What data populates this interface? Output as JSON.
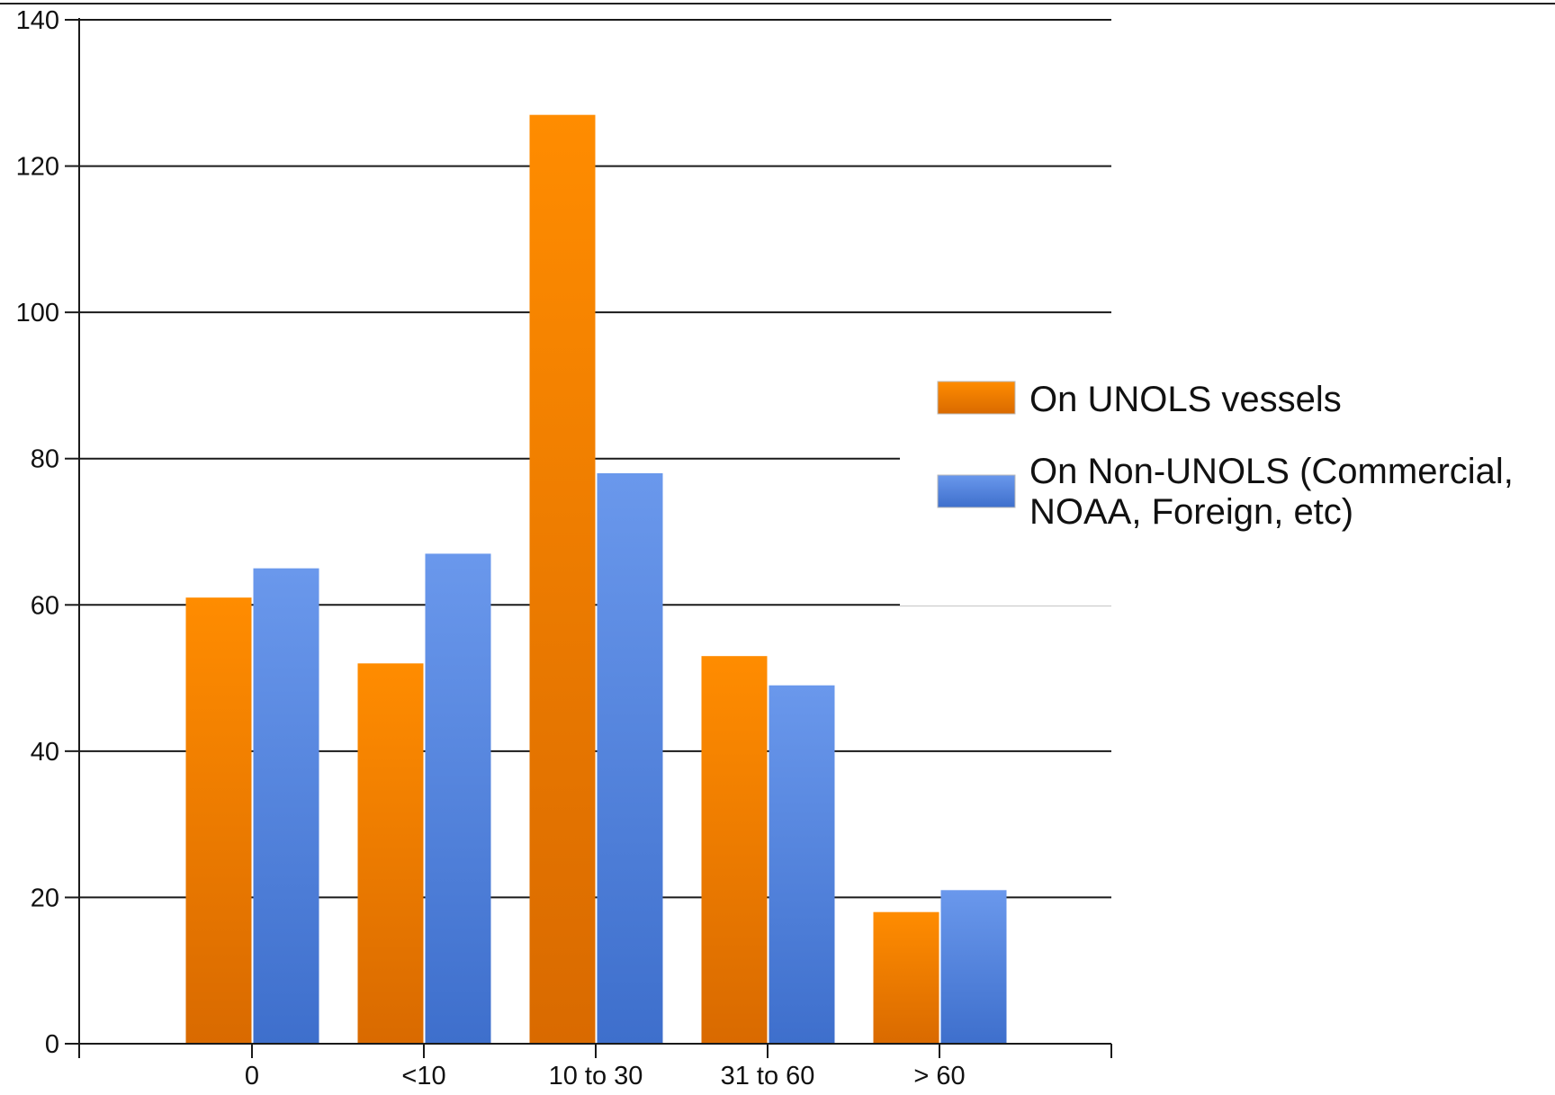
{
  "chart_data": {
    "type": "bar",
    "title": "",
    "xlabel": "",
    "ylabel": "",
    "categories": [
      "0",
      "<10",
      "10 to 30",
      "31 to 60",
      "> 60"
    ],
    "series": [
      {
        "name": "On UNOLS vessels",
        "legend_lines": [
          "On UNOLS vessels"
        ],
        "values": [
          61,
          52,
          127,
          53,
          18
        ],
        "color_top": "#ff8c00",
        "color_bottom": "#d96a00"
      },
      {
        "name": "On Non-UNOLS (Commercial, NOAA, Foreign, etc)",
        "legend_lines": [
          "On Non-UNOLS (Commercial,",
          "NOAA, Foreign, etc)"
        ],
        "values": [
          65,
          67,
          78,
          49,
          21
        ],
        "color_top": "#6a98ec",
        "color_bottom": "#3e6fcc"
      }
    ],
    "ylim": [
      0,
      140
    ],
    "yticks": [
      0,
      20,
      40,
      60,
      80,
      100,
      120,
      140
    ],
    "grid": true,
    "legend_position": "right"
  }
}
